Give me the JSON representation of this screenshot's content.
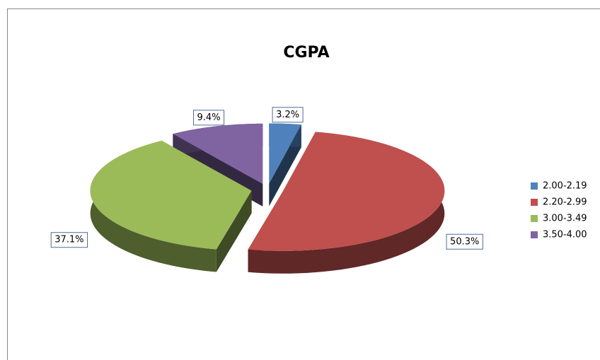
{
  "chart_data": {
    "type": "pie",
    "title": "CGPA",
    "categories": [
      "2.00-2.19",
      "2.20-2.99",
      "3.00-3.49",
      "3.50-4.00"
    ],
    "values": [
      3.2,
      50.3,
      37.1,
      9.4
    ],
    "value_labels": [
      "3.2%",
      "50.3%",
      "37.1%",
      "9.4%"
    ],
    "colors": [
      "#4f81bd",
      "#c0504d",
      "#9bbb59",
      "#8064a2"
    ],
    "legend": "right"
  }
}
